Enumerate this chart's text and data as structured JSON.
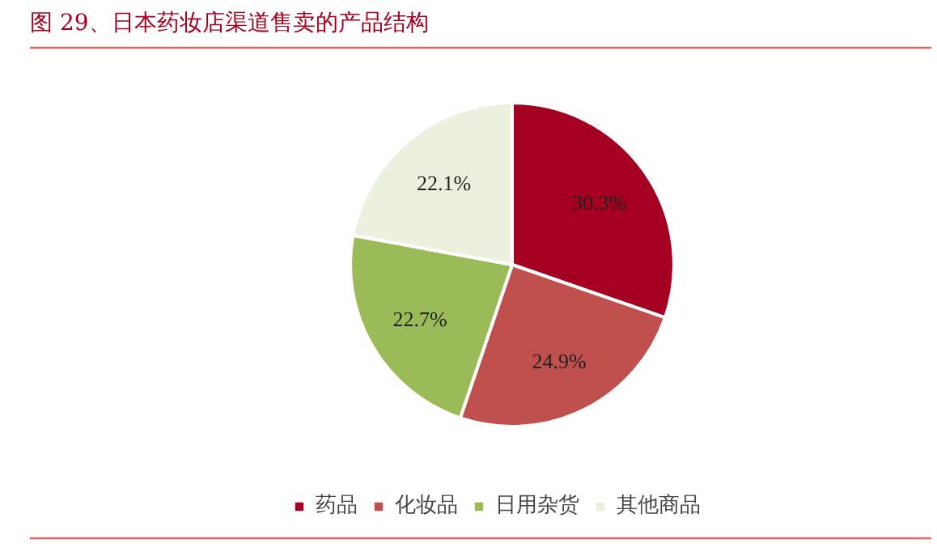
{
  "chart_data": {
    "type": "pie",
    "title": "图 29、日本药妆店渠道售卖的产品结构",
    "categories": [
      "药品",
      "化妆品",
      "日用杂货",
      "其他商品"
    ],
    "values": [
      30.3,
      24.9,
      22.7,
      22.1
    ],
    "colors": [
      "#a50021",
      "#c0504d",
      "#9bbb59",
      "#ebf1de"
    ],
    "value_labels": [
      "30.3%",
      "24.9%",
      "22.7%",
      "22.1%"
    ],
    "legend": "bottom"
  }
}
